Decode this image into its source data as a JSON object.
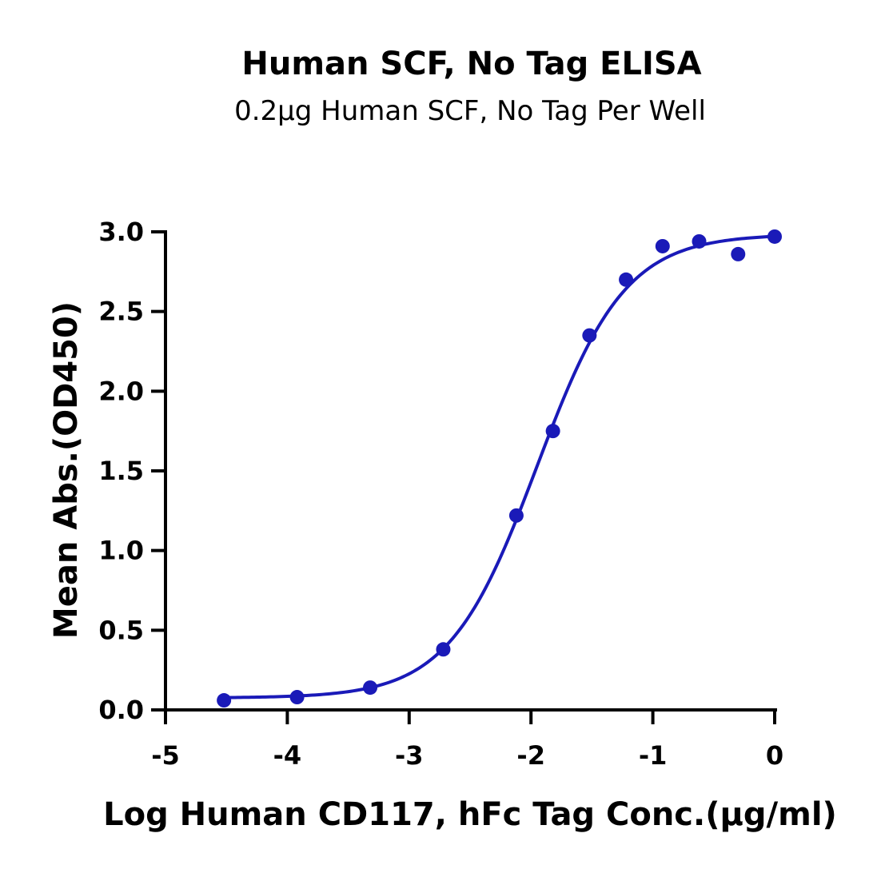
{
  "colors": {
    "series": "#1a1ab8",
    "axis": "#000000"
  },
  "chart_data": {
    "type": "scatter",
    "title": "Human SCF, No Tag ELISA",
    "subtitle": "0.2µg Human SCF, No Tag Per Well",
    "xlabel": "Log Human CD117, hFc Tag Conc.(µg/ml)",
    "ylabel": "Mean Abs.(OD450)",
    "xlim": [
      -5,
      0
    ],
    "ylim": [
      0,
      3.0
    ],
    "xticks": [
      -5,
      -4,
      -3,
      -2,
      -1,
      0
    ],
    "xtick_labels": [
      "-5",
      "-4",
      "-3",
      "-2",
      "-1",
      "0"
    ],
    "yticks": [
      0,
      0.5,
      1.0,
      1.5,
      2.0,
      2.5,
      3.0
    ],
    "ytick_labels": [
      "0.0",
      "0.5",
      "1.0",
      "1.5",
      "2.0",
      "2.5",
      "3.0"
    ],
    "grid": false,
    "points": [
      {
        "x": -4.52,
        "y": 0.06
      },
      {
        "x": -3.92,
        "y": 0.08
      },
      {
        "x": -3.32,
        "y": 0.14
      },
      {
        "x": -2.72,
        "y": 0.38
      },
      {
        "x": -2.12,
        "y": 1.22
      },
      {
        "x": -1.82,
        "y": 1.75
      },
      {
        "x": -1.52,
        "y": 2.35
      },
      {
        "x": -1.22,
        "y": 2.7
      },
      {
        "x": -0.92,
        "y": 2.91
      },
      {
        "x": -0.62,
        "y": 2.94
      },
      {
        "x": -0.3,
        "y": 2.86
      },
      {
        "x": 0.0,
        "y": 2.97
      }
    ],
    "fit": {
      "model": "4PL",
      "bottom": 0.075,
      "top": 2.985,
      "log_ec50": -1.95,
      "hill": 1.2,
      "x_range": [
        -4.52,
        0.0
      ]
    }
  }
}
